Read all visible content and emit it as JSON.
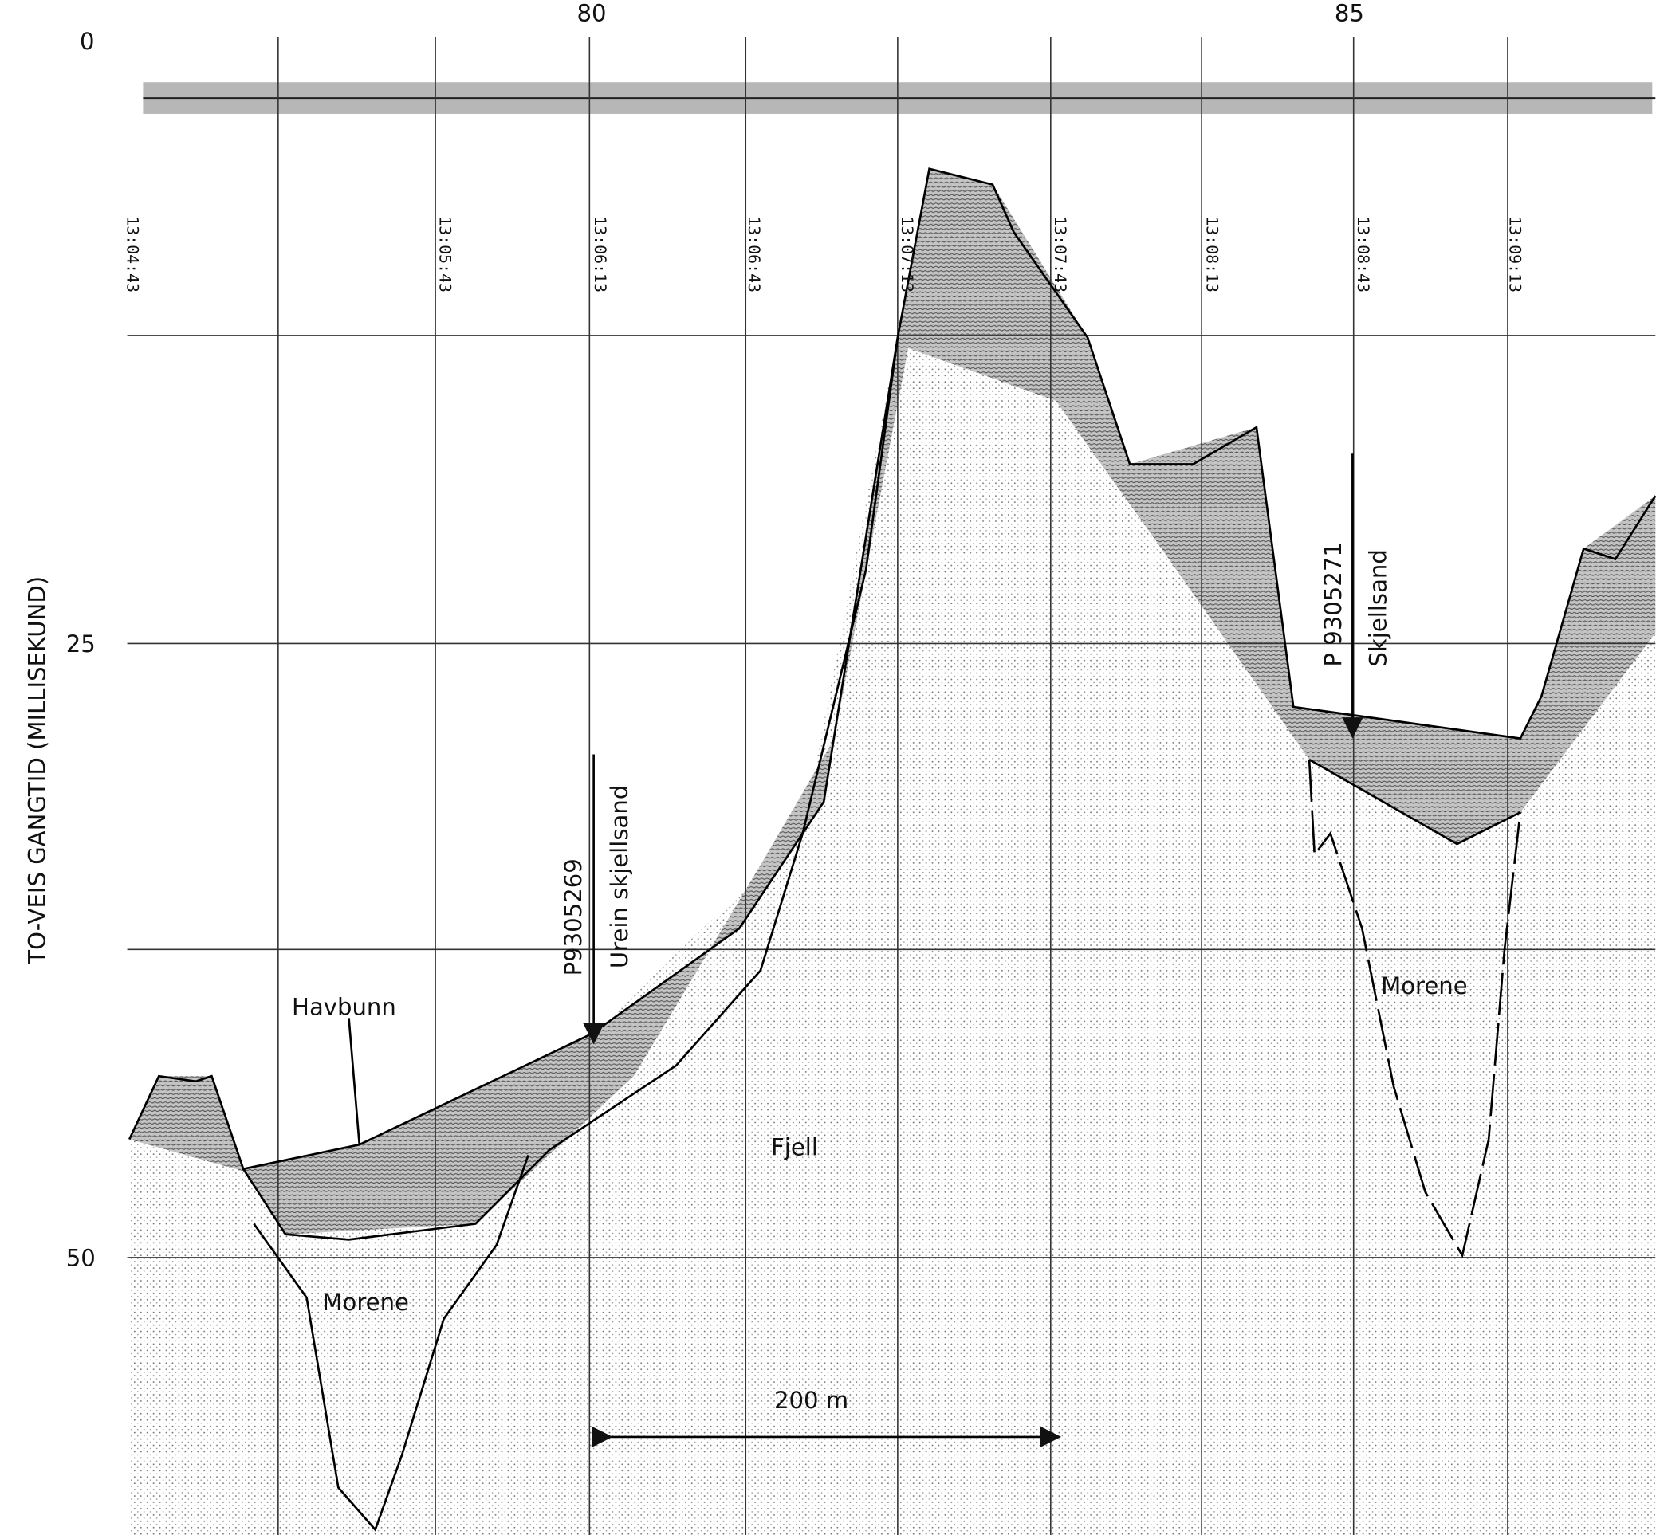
{
  "axis": {
    "title": "TO-VEIS GANGTID (MILLISEKUND)",
    "y_labels": [
      0,
      25,
      50
    ],
    "x_labels": [
      80,
      85
    ]
  },
  "timestamps": [
    "13:04:43",
    "13:05:43",
    "13:06:13",
    "13:06:43",
    "13:07:13",
    "13:07:43",
    "13:08:13",
    "13:08:43",
    "13:09:13"
  ],
  "annotations": {
    "havbunn": "Havbunn",
    "morene_left": "Morene",
    "fjell": "Fjell",
    "scale": "200 m",
    "sample_1_id": "P9305269",
    "sample_1_desc": "Urein skjellsand",
    "sample_2_id": "P 9305271",
    "sample_2_desc": "Skjellsand",
    "morene_right": "Morene"
  }
}
